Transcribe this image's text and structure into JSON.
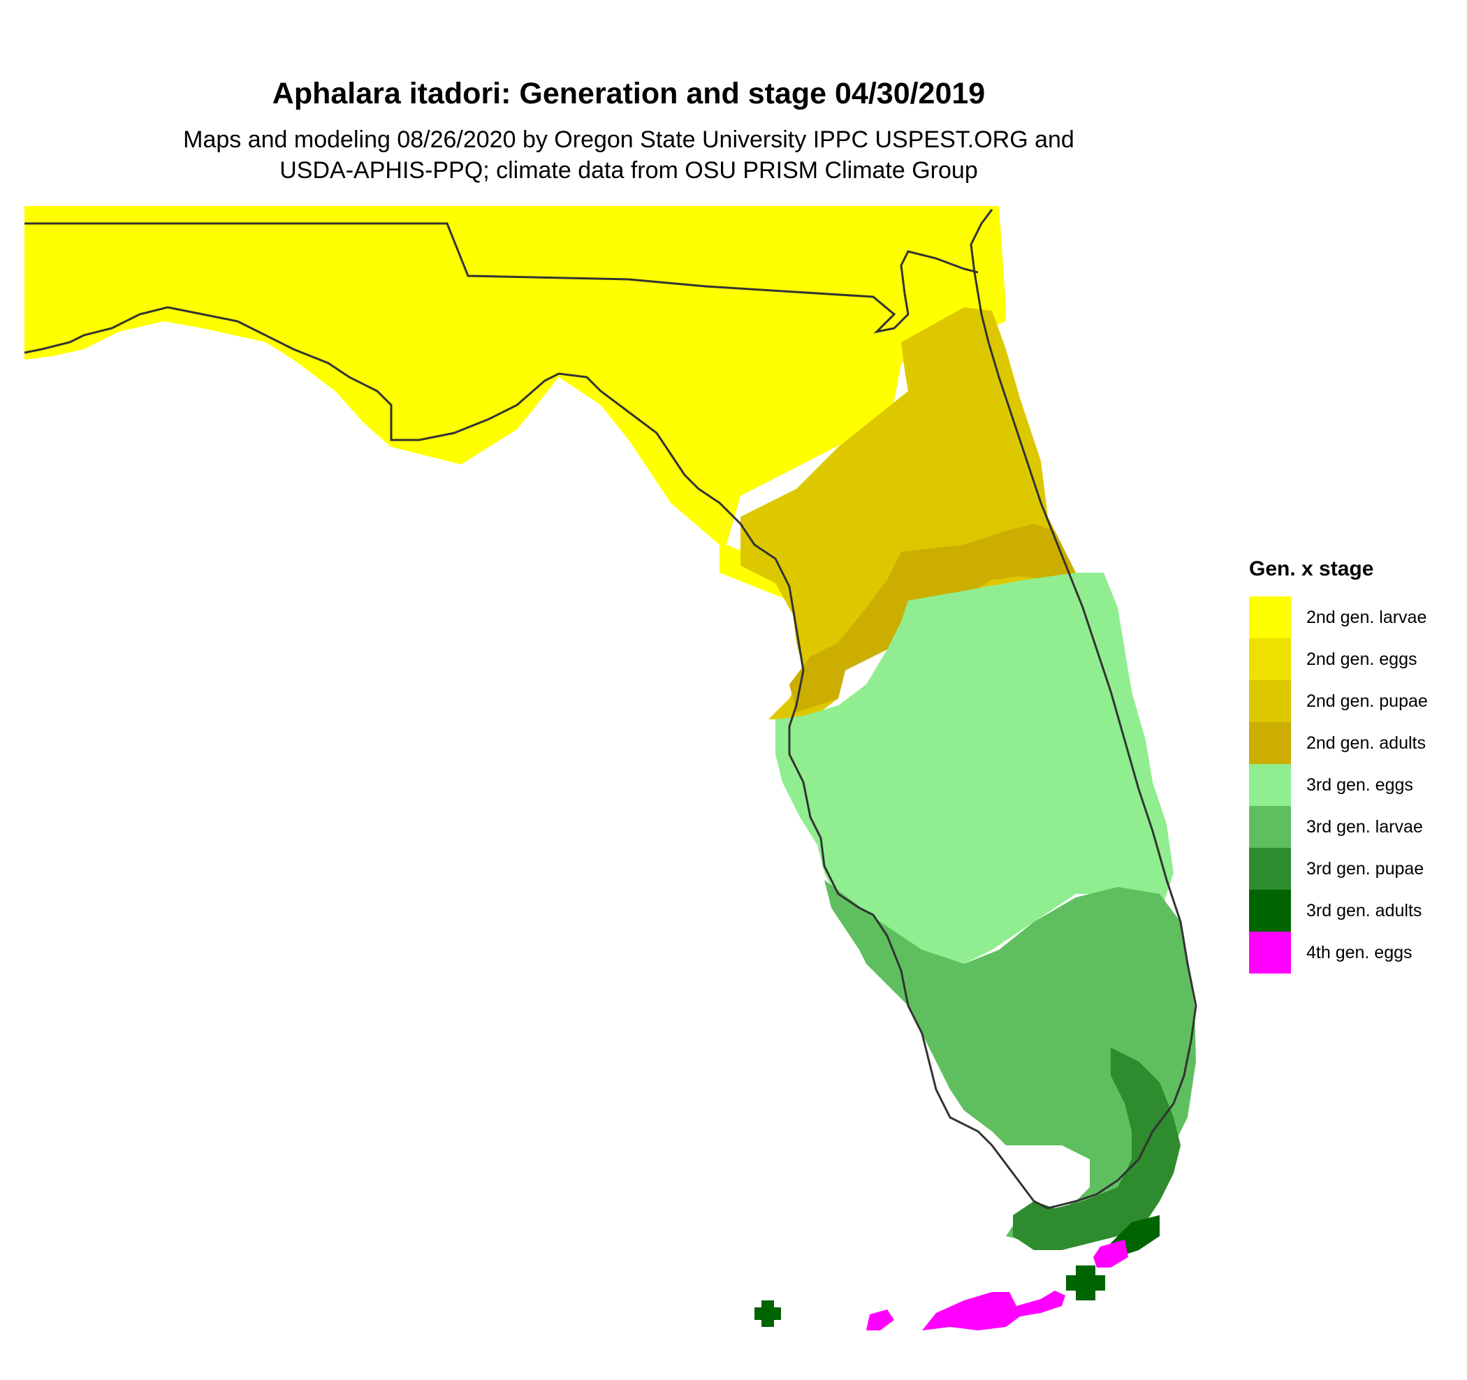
{
  "title": "Aphalara itadori: Generation and stage 04/30/2019",
  "subtitle_line1": "Maps and modeling 08/26/2020 by Oregon State University IPPC USPEST.ORG and",
  "subtitle_line2": "USDA-APHIS-PPQ; climate data from OSU PRISM Climate Group",
  "legend": {
    "title": "Gen. x stage",
    "items": [
      {
        "label": "2nd gen. larvae",
        "color": "#ffff00"
      },
      {
        "label": "2nd gen. eggs",
        "color": "#eee000"
      },
      {
        "label": "2nd gen. pupae",
        "color": "#ddc800"
      },
      {
        "label": "2nd gen. adults",
        "color": "#ccae00"
      },
      {
        "label": "3rd gen. eggs",
        "color": "#90ee90"
      },
      {
        "label": "3rd gen. larvae",
        "color": "#5fbf5f"
      },
      {
        "label": "3rd gen. pupae",
        "color": "#2e8b2e"
      },
      {
        "label": "3rd gen. adults",
        "color": "#006400"
      },
      {
        "label": "4th gen. eggs",
        "color": "#ff00ff"
      }
    ]
  },
  "map": {
    "region": "Florida",
    "boundary_color": "#333333"
  }
}
